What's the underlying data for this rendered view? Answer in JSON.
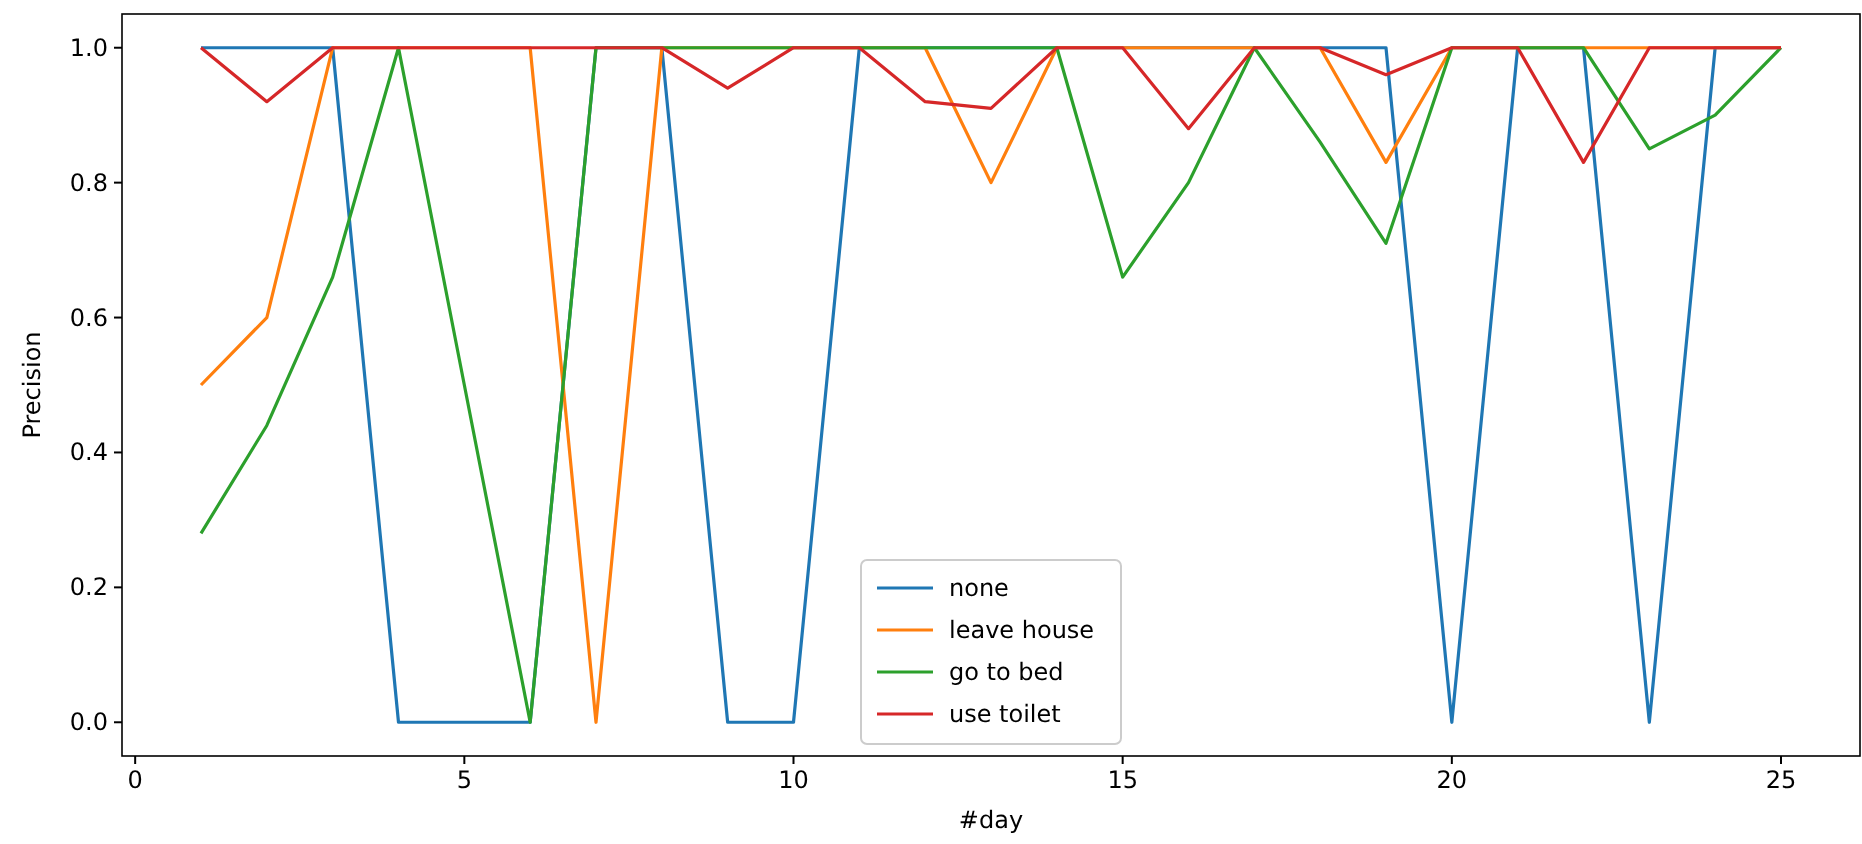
{
  "chart_data": {
    "type": "line",
    "xlabel": "#day",
    "ylabel": "Precision",
    "x": [
      1,
      2,
      3,
      4,
      5,
      6,
      7,
      8,
      9,
      10,
      11,
      12,
      13,
      14,
      15,
      16,
      17,
      18,
      19,
      20,
      21,
      22,
      23,
      24,
      25
    ],
    "series": [
      {
        "name": "none",
        "color": "#1f77b4",
        "values": [
          1,
          1,
          1,
          0,
          0,
          0,
          1,
          1,
          0,
          0,
          1,
          1,
          1,
          1,
          1,
          1,
          1,
          1,
          1,
          0,
          1,
          1,
          0,
          1,
          1
        ]
      },
      {
        "name": "leave house",
        "color": "#ff7f0e",
        "values": [
          0.5,
          0.6,
          1,
          1,
          1,
          1,
          0,
          1,
          1,
          1,
          1,
          1,
          0.8,
          1,
          1,
          1,
          1,
          1,
          0.83,
          1,
          1,
          1,
          1,
          1,
          1
        ]
      },
      {
        "name": "go to bed",
        "color": "#2ca02c",
        "values": [
          0.28,
          0.44,
          0.66,
          1,
          0.5,
          0,
          1,
          1,
          1,
          1,
          1,
          1,
          1,
          1,
          0.66,
          0.8,
          1,
          0.86,
          0.71,
          1,
          1,
          1,
          0.85,
          0.9,
          1
        ]
      },
      {
        "name": "use toilet",
        "color": "#d62728",
        "values": [
          1,
          0.92,
          1,
          1,
          1,
          1,
          1,
          1,
          0.94,
          1,
          1,
          0.92,
          0.91,
          1,
          1,
          0.88,
          1,
          1,
          0.96,
          1,
          1,
          0.83,
          1,
          1,
          1
        ]
      }
    ],
    "xlim": [
      -0.2,
      26.2
    ],
    "xticks": [
      0,
      5,
      10,
      15,
      20,
      25
    ],
    "ylim": [
      -0.05,
      1.05
    ],
    "yticks": [
      {
        "value": 0,
        "label": "0.0"
      },
      {
        "value": 0.2,
        "label": "0.2"
      },
      {
        "value": 0.4,
        "label": "0.4"
      },
      {
        "value": 0.6,
        "label": "0.6"
      },
      {
        "value": 0.8,
        "label": "0.8"
      },
      {
        "value": 1,
        "label": "1.0"
      }
    ],
    "grid": false,
    "legend": "bottom",
    "marker": "none",
    "line_style": "solid"
  }
}
